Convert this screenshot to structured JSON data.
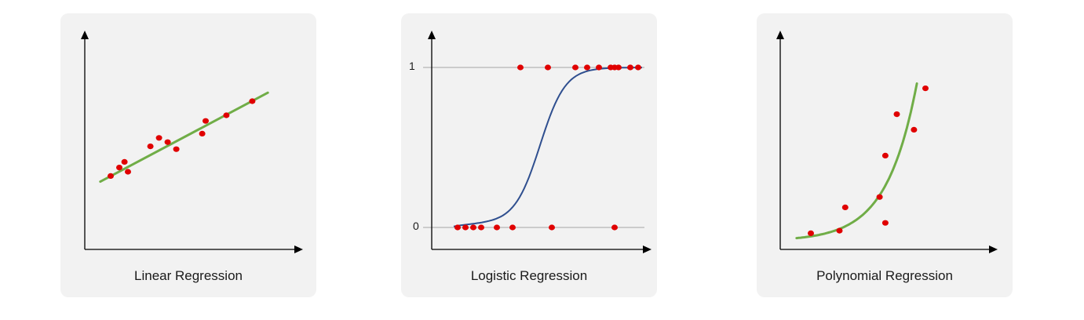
{
  "panels": [
    {
      "caption": "Linear Regression",
      "points": [
        [
          1.5,
          5.2
        ],
        [
          2.0,
          5.8
        ],
        [
          2.3,
          6.2
        ],
        [
          2.5,
          5.5
        ],
        [
          3.8,
          7.3
        ],
        [
          4.3,
          7.9
        ],
        [
          4.8,
          7.6
        ],
        [
          5.3,
          7.1
        ],
        [
          6.8,
          8.2
        ],
        [
          7.0,
          9.1
        ],
        [
          8.2,
          9.5
        ],
        [
          9.7,
          10.5
        ]
      ],
      "line": [
        [
          0.9,
          4.8
        ],
        [
          10.6,
          11.1
        ]
      ],
      "line_color": "#70ad47",
      "point_color": "#e00000"
    },
    {
      "caption": "Logistic Regression",
      "tick_labels": [
        "1",
        "0"
      ],
      "points_top": [
        1.7,
        2.4,
        3.1,
        3.4,
        3.7,
        4.0,
        4.1,
        4.2,
        4.5,
        4.7
      ],
      "points_bottom": [
        0.1,
        0.3,
        0.5,
        0.7,
        1.1,
        1.5,
        2.5,
        4.1
      ],
      "curve_color": "#2f4f8f",
      "point_color": "#e00000"
    },
    {
      "caption": "Polynomial Regression",
      "points": [
        [
          1.0,
          0.2
        ],
        [
          2.0,
          0.3
        ],
        [
          2.2,
          1.2
        ],
        [
          3.4,
          1.6
        ],
        [
          3.6,
          3.2
        ],
        [
          3.6,
          0.6
        ],
        [
          4.0,
          4.8
        ],
        [
          4.6,
          4.2
        ],
        [
          5.0,
          5.8
        ]
      ],
      "curve_color": "#70ad47",
      "point_color": "#e00000"
    }
  ]
}
